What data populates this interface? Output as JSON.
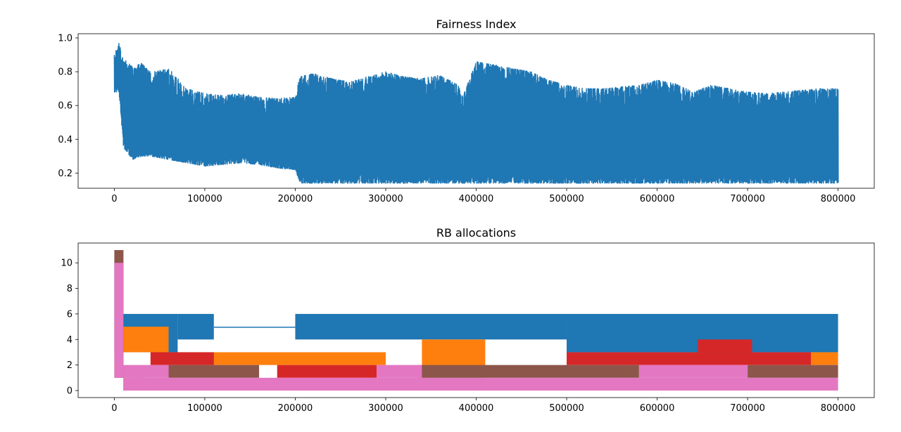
{
  "chart_data": [
    {
      "type": "line",
      "title": "Fairness Index",
      "xlabel": "",
      "ylabel": "",
      "xlim": [
        -40000,
        840000
      ],
      "ylim": [
        0.11,
        1.025
      ],
      "xticks": [
        0,
        100000,
        200000,
        300000,
        400000,
        500000,
        600000,
        700000,
        800000
      ],
      "xtick_labels": [
        "0",
        "100000",
        "200000",
        "300000",
        "400000",
        "500000",
        "600000",
        "700000",
        "800000"
      ],
      "yticks": [
        0.2,
        0.4,
        0.6,
        0.8,
        1.0
      ],
      "ytick_labels": [
        "0.2",
        "0.4",
        "0.6",
        "0.8",
        "1.0"
      ],
      "grid": false,
      "series": [
        {
          "color": "#1f77b4",
          "x": [
            0,
            5000,
            10000,
            20000,
            30000,
            40000,
            60000,
            80000,
            100000,
            120000,
            140000,
            160000,
            180000,
            200000,
            205000,
            220000,
            240000,
            260000,
            280000,
            300000,
            320000,
            340000,
            360000,
            380000,
            385000,
            400000,
            420000,
            440000,
            460000,
            480000,
            500000,
            520000,
            540000,
            560000,
            580000,
            600000,
            620000,
            640000,
            660000,
            680000,
            700000,
            720000,
            740000,
            760000,
            780000,
            800000
          ],
          "y_upper": [
            0.9,
            0.97,
            0.88,
            0.83,
            0.85,
            0.8,
            0.82,
            0.7,
            0.67,
            0.66,
            0.67,
            0.65,
            0.64,
            0.65,
            0.77,
            0.79,
            0.76,
            0.74,
            0.77,
            0.8,
            0.77,
            0.76,
            0.78,
            0.72,
            0.65,
            0.86,
            0.84,
            0.82,
            0.8,
            0.75,
            0.72,
            0.7,
            0.7,
            0.71,
            0.72,
            0.75,
            0.73,
            0.68,
            0.72,
            0.7,
            0.68,
            0.67,
            0.68,
            0.69,
            0.7,
            0.7
          ],
          "y_lower": [
            0.68,
            0.68,
            0.35,
            0.28,
            0.3,
            0.3,
            0.28,
            0.26,
            0.24,
            0.25,
            0.26,
            0.25,
            0.23,
            0.22,
            0.14,
            0.14,
            0.14,
            0.14,
            0.14,
            0.14,
            0.14,
            0.14,
            0.14,
            0.14,
            0.14,
            0.14,
            0.14,
            0.14,
            0.14,
            0.14,
            0.14,
            0.14,
            0.14,
            0.14,
            0.14,
            0.14,
            0.14,
            0.14,
            0.14,
            0.14,
            0.14,
            0.14,
            0.14,
            0.14,
            0.14,
            0.14
          ]
        }
      ]
    },
    {
      "type": "line",
      "title": "RB allocations",
      "xlabel": "",
      "ylabel": "",
      "xlim": [
        -40000,
        840000
      ],
      "ylim": [
        -0.55,
        11.55
      ],
      "xticks": [
        0,
        100000,
        200000,
        300000,
        400000,
        500000,
        600000,
        700000,
        800000
      ],
      "xtick_labels": [
        "0",
        "100000",
        "200000",
        "300000",
        "400000",
        "500000",
        "600000",
        "700000",
        "800000"
      ],
      "yticks": [
        0,
        2,
        4,
        6,
        8,
        10
      ],
      "ytick_labels": [
        "0",
        "2",
        "4",
        "6",
        "8",
        "10"
      ],
      "grid": false,
      "series": [
        {
          "color": "#1f77b4",
          "bands": [
            [
              0,
              10000,
              3,
              10
            ],
            [
              10000,
              70000,
              3,
              6
            ],
            [
              70000,
              110000,
              4,
              6
            ],
            [
              110000,
              200000,
              5,
              5
            ],
            [
              200000,
              500000,
              4,
              6
            ],
            [
              500000,
              800000,
              3,
              6
            ]
          ]
        },
        {
          "color": "#ff7f0e",
          "bands": [
            [
              10000,
              60000,
              3,
              5
            ],
            [
              60000,
              300000,
              2,
              3
            ],
            [
              340000,
              410000,
              1,
              4
            ],
            [
              770000,
              800000,
              2,
              3
            ]
          ]
        },
        {
          "color": "#2ca02c",
          "bands": [
            [
              5000,
              10000,
              1,
              11
            ],
            [
              115000,
              120000,
              0,
              1
            ]
          ]
        },
        {
          "color": "#d62728",
          "bands": [
            [
              40000,
              110000,
              2,
              3
            ],
            [
              180000,
              290000,
              1,
              2
            ],
            [
              500000,
              770000,
              2,
              3
            ],
            [
              645000,
              705000,
              3,
              4
            ]
          ]
        },
        {
          "color": "#9467bd",
          "bands": [
            [
              25000,
              35000,
              0,
              1
            ],
            [
              135000,
              140000,
              0,
              1
            ]
          ]
        },
        {
          "color": "#8c564b",
          "bands": [
            [
              0,
              10000,
              1,
              11
            ],
            [
              10000,
              30000,
              0,
              1
            ],
            [
              60000,
              160000,
              1,
              2
            ],
            [
              335000,
              580000,
              1,
              2
            ],
            [
              700000,
              800000,
              1,
              2
            ]
          ]
        },
        {
          "color": "#e377c2",
          "bands": [
            [
              0,
              10000,
              1,
              10
            ],
            [
              10000,
              800000,
              0,
              1
            ],
            [
              10000,
              60000,
              1,
              2
            ],
            [
              290000,
              340000,
              1,
              2
            ],
            [
              580000,
              700000,
              1,
              2
            ]
          ]
        }
      ]
    }
  ]
}
